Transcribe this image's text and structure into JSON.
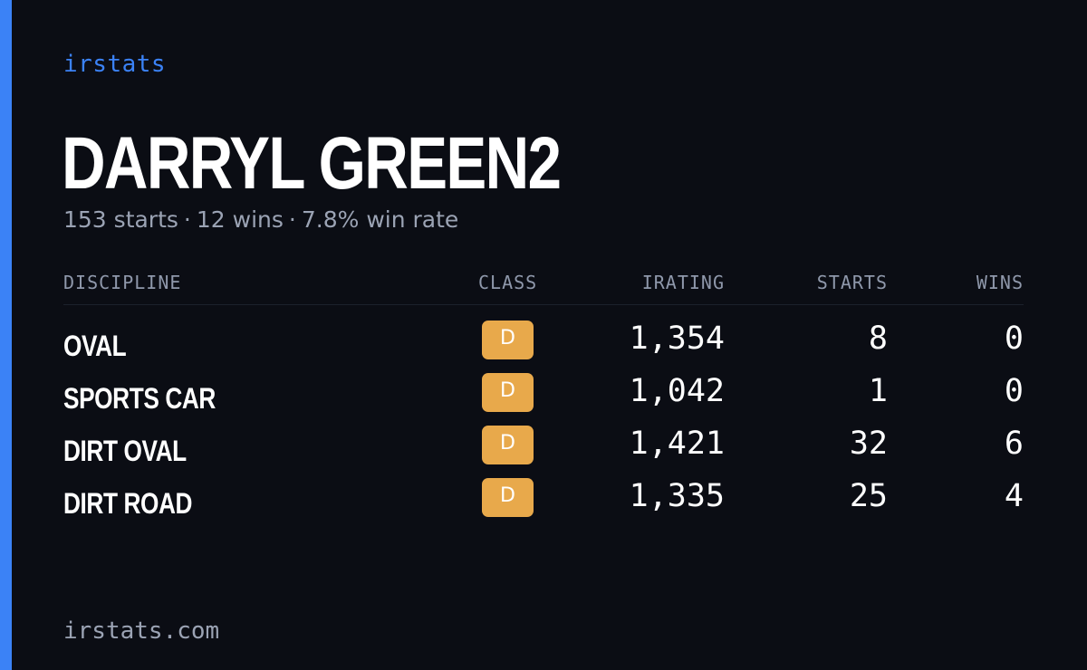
{
  "brand": "irstats",
  "driver": {
    "name": "DARRYL GREEN2",
    "starts_summary": "153 starts",
    "wins_summary": "12 wins",
    "win_rate_summary": "7.8% win rate",
    "separator": "·"
  },
  "table": {
    "headers": {
      "discipline": "DISCIPLINE",
      "class": "CLASS",
      "irating": "IRATING",
      "starts": "STARTS",
      "wins": "WINS"
    },
    "rows": [
      {
        "discipline": "OVAL",
        "class": "D",
        "irating": "1,354",
        "starts": "8",
        "wins": "0"
      },
      {
        "discipline": "SPORTS CAR",
        "class": "D",
        "irating": "1,042",
        "starts": "1",
        "wins": "0"
      },
      {
        "discipline": "DIRT OVAL",
        "class": "D",
        "irating": "1,421",
        "starts": "32",
        "wins": "6"
      },
      {
        "discipline": "DIRT ROAD",
        "class": "D",
        "irating": "1,335",
        "starts": "25",
        "wins": "4"
      }
    ]
  },
  "footer": {
    "domain": "irstats.com"
  },
  "colors": {
    "accent": "#3b82f6",
    "background": "#0b0d14",
    "class_d_badge": "#e8a94b"
  }
}
